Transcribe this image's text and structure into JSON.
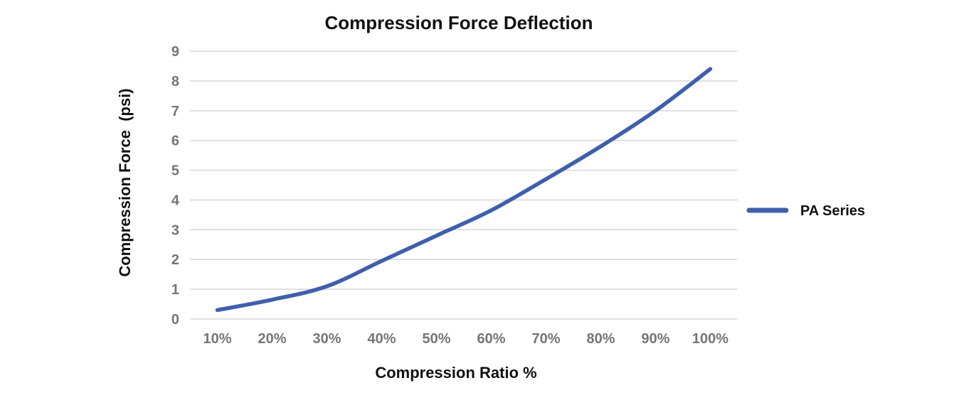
{
  "chart_data": {
    "type": "line",
    "title": "Compression Force Deflection",
    "xlabel": "Compression Ratio %",
    "ylabel": "Compression Force  (psi)",
    "categories": [
      "10%",
      "20%",
      "30%",
      "40%",
      "50%",
      "60%",
      "70%",
      "80%",
      "90%",
      "100%"
    ],
    "yticks": [
      0,
      1,
      2,
      3,
      4,
      5,
      6,
      7,
      8,
      9
    ],
    "ylim": [
      0,
      9
    ],
    "grid": true,
    "legend_position": "right",
    "series": [
      {
        "name": "PA Series",
        "color": "#3E5FAA",
        "values": [
          0.3,
          0.65,
          1.1,
          1.95,
          2.8,
          3.65,
          4.7,
          5.8,
          7.0,
          8.4
        ]
      }
    ],
    "colors": {
      "gridline": "#D9D9D9",
      "tick_label": "#757575",
      "text": "#111111",
      "background": "#FFFFFF"
    }
  }
}
